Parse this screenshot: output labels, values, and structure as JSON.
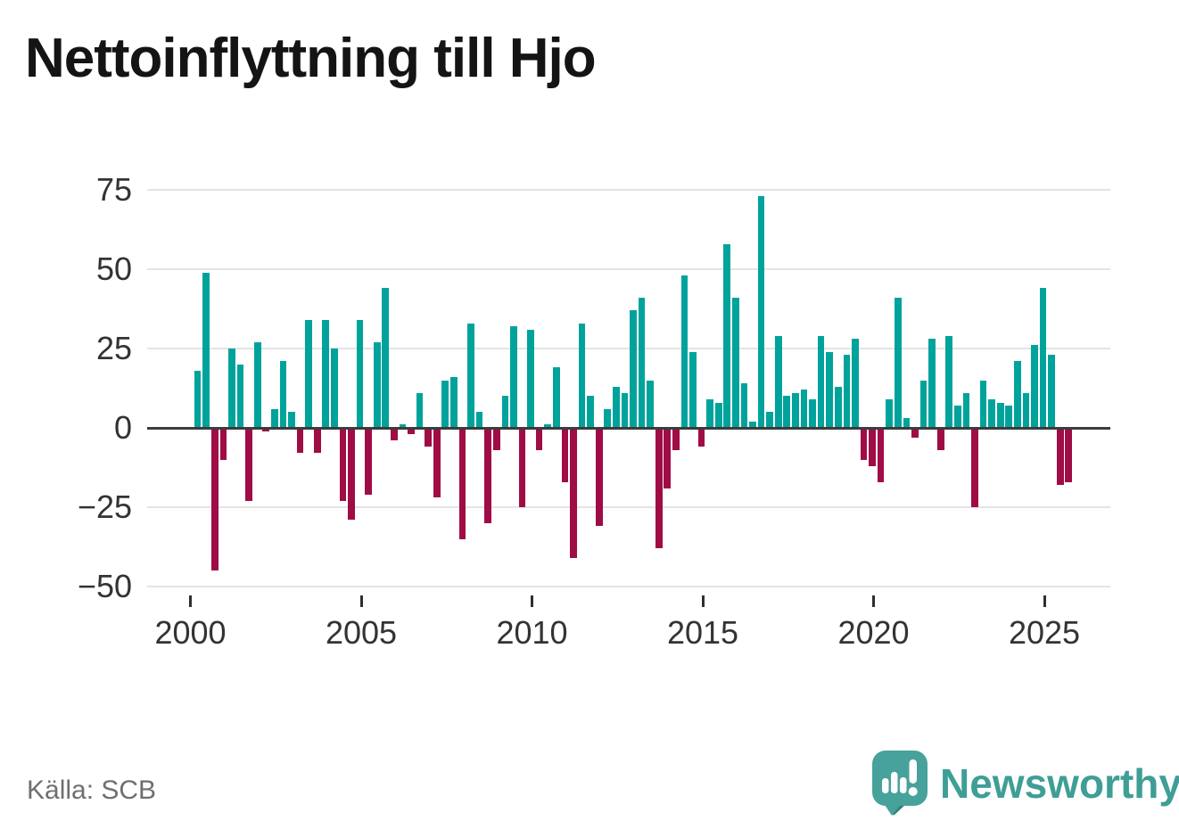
{
  "title": "Nettoinflyttning till Hjo",
  "source": {
    "label": "Källa: SCB"
  },
  "branding": {
    "name": "Newsworthy",
    "icon": "speech-bubble-bar-chart-icon",
    "text_color": "#3f9e96",
    "icon_color": "#47a29b"
  },
  "chart_data": {
    "type": "bar",
    "title": "Nettoinflyttning till Hjo",
    "frequency": "quarterly",
    "x_start": "2000Q1",
    "x_end": "2025Q3",
    "values": [
      18,
      49,
      -45,
      -10,
      25,
      20,
      -23,
      27,
      -1,
      6,
      21,
      5,
      -8,
      34,
      -8,
      34,
      25,
      -23,
      -29,
      34,
      -21,
      27,
      44,
      -4,
      1,
      -2,
      11,
      -6,
      -22,
      15,
      16,
      -35,
      33,
      5,
      -30,
      -7,
      10,
      32,
      -25,
      31,
      -7,
      1,
      19,
      -17,
      -41,
      33,
      10,
      -31,
      6,
      13,
      11,
      37,
      41,
      15,
      -38,
      -19,
      -7,
      48,
      24,
      -6,
      9,
      8,
      58,
      41,
      14,
      2,
      73,
      5,
      29,
      10,
      11,
      12,
      9,
      29,
      24,
      13,
      23,
      28,
      -10,
      -12,
      -17,
      9,
      41,
      3,
      -3,
      15,
      28,
      -7,
      29,
      7,
      11,
      -25,
      15,
      9,
      8,
      7,
      21,
      11,
      26,
      44,
      23,
      -18,
      -17
    ],
    "positive_color": "#00a39c",
    "negative_color": "#9f0c46",
    "y_axis": {
      "ticks": [
        75,
        50,
        25,
        0,
        -25,
        -50
      ],
      "range": [
        -50,
        75
      ]
    },
    "x_axis": {
      "tick_years": [
        2000,
        2005,
        2010,
        2015,
        2020,
        2025
      ]
    },
    "grid": "horizontal",
    "legend": "none"
  }
}
